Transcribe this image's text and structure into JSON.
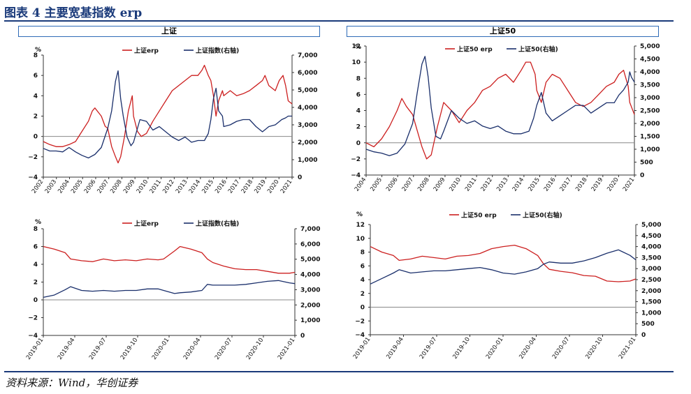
{
  "figure_title": "图表 4    主要宽基指数 erp",
  "source": "资料来源：Wind，华创证券",
  "panel_titles": {
    "left": "上证",
    "right": "上证50"
  },
  "colors": {
    "erp": "#cc1f1f",
    "index": "#1a2f6b",
    "accent": "#1a3a7a",
    "panel_border": "#2e6bb7"
  },
  "chart_data": [
    {
      "id": "a",
      "type": "line",
      "y_unit": "%",
      "left_ylim": [
        -4,
        8
      ],
      "right_ylim": [
        0,
        7000
      ],
      "left_ticks": [
        "8",
        "6",
        "4",
        "2",
        "0",
        "−2",
        "−4"
      ],
      "right_ticks": [
        "7,000",
        "6,000",
        "5,000",
        "4,000",
        "3,000",
        "2,000",
        "1,000",
        "0"
      ],
      "x_ticks": [
        "2002",
        "2003",
        "2004",
        "2005",
        "2006",
        "2007",
        "2008",
        "2009",
        "2010",
        "2011",
        "2012",
        "2013",
        "2014",
        "2015",
        "2016",
        "2017",
        "2018",
        "2019",
        "2020",
        "2021"
      ],
      "x_range": [
        2002,
        2021.3
      ],
      "series": [
        {
          "name": "上证erp",
          "axis": "left",
          "x": [
            2002,
            2002.5,
            2003,
            2003.5,
            2004,
            2004.5,
            2005,
            2005.5,
            2005.8,
            2006,
            2006.5,
            2006.8,
            2007,
            2007.3,
            2007.6,
            2007.8,
            2008,
            2008.3,
            2008.6,
            2008.9,
            2009,
            2009.3,
            2009.6,
            2010,
            2010.5,
            2011,
            2011.5,
            2012,
            2012.5,
            2013,
            2013.5,
            2014,
            2014.3,
            2014.5,
            2014.8,
            2015,
            2015.2,
            2015.4,
            2015.6,
            2015.9,
            2016,
            2016.5,
            2017,
            2017.5,
            2018,
            2018.5,
            2019,
            2019.2,
            2019.5,
            2020,
            2020.3,
            2020.6,
            2020.8,
            2021,
            2021.3
          ],
          "y": [
            -0.5,
            -0.8,
            -1.0,
            -1.0,
            -0.8,
            -0.5,
            0.5,
            1.5,
            2.5,
            2.8,
            2.0,
            1.0,
            0.8,
            -1.0,
            -2.0,
            -2.6,
            -2.0,
            0.0,
            2.5,
            4.0,
            2.0,
            0.5,
            0.0,
            0.3,
            1.5,
            2.5,
            3.5,
            4.5,
            5.0,
            5.5,
            6.0,
            6.0,
            6.5,
            7.0,
            6.0,
            5.5,
            4.0,
            2.0,
            3.5,
            4.5,
            4.0,
            4.5,
            4.0,
            4.2,
            4.5,
            5.0,
            5.5,
            6.0,
            5.0,
            4.5,
            5.5,
            6.0,
            5.0,
            3.5,
            3.2
          ]
        },
        {
          "name": "上证指数(右轴)",
          "axis": "right",
          "x": [
            2002,
            2002.5,
            2003,
            2003.5,
            2004,
            2004.5,
            2005,
            2005.5,
            2006,
            2006.5,
            2007,
            2007.3,
            2007.6,
            2007.8,
            2008,
            2008.2,
            2008.5,
            2008.8,
            2009,
            2009.5,
            2010,
            2010.5,
            2011,
            2011.5,
            2012,
            2012.5,
            2013,
            2013.5,
            2014,
            2014.5,
            2014.8,
            2015,
            2015.2,
            2015.4,
            2015.6,
            2015.9,
            2016,
            2016.5,
            2017,
            2017.5,
            2018,
            2018.5,
            2019,
            2019.5,
            2020,
            2020.5,
            2020.8,
            2021,
            2021.3
          ],
          "y": [
            1650,
            1500,
            1500,
            1450,
            1700,
            1450,
            1250,
            1100,
            1300,
            1700,
            2800,
            3800,
            5500,
            6100,
            4500,
            3500,
            2300,
            1800,
            2000,
            3300,
            3200,
            2700,
            2900,
            2600,
            2300,
            2100,
            2300,
            2000,
            2100,
            2100,
            2500,
            3300,
            4500,
            5100,
            3800,
            3500,
            2900,
            3000,
            3200,
            3300,
            3300,
            2900,
            2600,
            2900,
            3000,
            3300,
            3400,
            3500,
            3500
          ]
        }
      ]
    },
    {
      "id": "b",
      "type": "line",
      "y_unit": "%",
      "left_ylim": [
        -4,
        12
      ],
      "right_ylim": [
        0,
        5000
      ],
      "left_ticks": [
        "12",
        "10",
        "8",
        "6",
        "4",
        "2",
        "0",
        "−2",
        "−4"
      ],
      "right_ticks": [
        "5,000",
        "4,500",
        "4,000",
        "3,500",
        "3,000",
        "2,500",
        "2,000",
        "1,500",
        "1,000",
        "500",
        "0"
      ],
      "x_ticks": [
        "2004",
        "2005",
        "2006",
        "2007",
        "2008",
        "2009",
        "2010",
        "2011",
        "2012",
        "2013",
        "2014",
        "2015",
        "2016",
        "2017",
        "2018",
        "2019",
        "2020",
        "2021"
      ],
      "x_range": [
        2004,
        2021.3
      ],
      "series": [
        {
          "name": "上证50 erp",
          "axis": "left",
          "x": [
            2004,
            2004.5,
            2005,
            2005.5,
            2006,
            2006.3,
            2006.6,
            2007,
            2007.3,
            2007.6,
            2007.9,
            2008.2,
            2008.6,
            2009,
            2009.5,
            2010,
            2010.5,
            2011,
            2011.5,
            2012,
            2012.5,
            2013,
            2013.5,
            2014,
            2014.3,
            2014.6,
            2014.9,
            2015,
            2015.3,
            2015.6,
            2016,
            2016.5,
            2017,
            2017.5,
            2018,
            2018.5,
            2019,
            2019.5,
            2020,
            2020.3,
            2020.6,
            2020.9,
            2021,
            2021.3
          ],
          "y": [
            0.0,
            -0.5,
            0.5,
            2.0,
            4.0,
            5.5,
            4.5,
            3.5,
            1.5,
            -0.5,
            -2.0,
            -1.5,
            2.0,
            5.0,
            4.0,
            2.5,
            4.0,
            5.0,
            6.5,
            7.0,
            8.0,
            8.5,
            7.5,
            9.0,
            10.0,
            10.0,
            8.5,
            6.5,
            5.0,
            7.5,
            8.5,
            8.0,
            6.5,
            5.0,
            4.5,
            5.0,
            6.0,
            7.0,
            7.5,
            8.5,
            9.0,
            7.0,
            5.0,
            3.5
          ]
        },
        {
          "name": "上证50(右轴)",
          "axis": "right",
          "x": [
            2004,
            2004.5,
            2005,
            2005.5,
            2006,
            2006.5,
            2007,
            2007.3,
            2007.6,
            2007.8,
            2008,
            2008.2,
            2008.5,
            2008.8,
            2009,
            2009.5,
            2010,
            2010.5,
            2011,
            2011.5,
            2012,
            2012.5,
            2013,
            2013.5,
            2014,
            2014.5,
            2014.8,
            2015,
            2015.3,
            2015.6,
            2016,
            2016.5,
            2017,
            2017.5,
            2018,
            2018.5,
            2019,
            2019.5,
            2020,
            2020.3,
            2020.6,
            2020.9,
            2021,
            2021.1,
            2021.3
          ],
          "y": [
            1000,
            900,
            850,
            750,
            850,
            1200,
            2000,
            3200,
            4300,
            4600,
            3800,
            2600,
            1500,
            1400,
            1700,
            2500,
            2200,
            2000,
            2100,
            1900,
            1800,
            1900,
            1700,
            1600,
            1600,
            1700,
            2200,
            2700,
            3200,
            2400,
            2100,
            2300,
            2500,
            2700,
            2700,
            2400,
            2600,
            2800,
            2800,
            3100,
            3300,
            3600,
            4000,
            3800,
            3600
          ]
        }
      ]
    },
    {
      "id": "c",
      "type": "line",
      "y_unit": "%",
      "left_ylim": [
        -4,
        8
      ],
      "right_ylim": [
        0,
        7000
      ],
      "left_ticks": [
        "8",
        "6",
        "4",
        "2",
        "0",
        "−2",
        "−4"
      ],
      "right_ticks": [
        "7,000",
        "6,000",
        "5,000",
        "4,000",
        "3,000",
        "2,000",
        "1,000",
        "0"
      ],
      "x_ticks": [
        "2019-01",
        "2019-04",
        "2019-07",
        "2019-10",
        "2020-01",
        "2020-04",
        "2020-07",
        "2020-10",
        "2021-01"
      ],
      "x_range": [
        2019.0,
        2021.3
      ],
      "series": [
        {
          "name": "上证erp",
          "axis": "left",
          "x": [
            2019.0,
            2019.1,
            2019.2,
            2019.25,
            2019.35,
            2019.45,
            2019.55,
            2019.65,
            2019.75,
            2019.85,
            2019.95,
            2020.05,
            2020.1,
            2020.2,
            2020.25,
            2020.35,
            2020.45,
            2020.5,
            2020.55,
            2020.65,
            2020.75,
            2020.85,
            2020.95,
            2021.05,
            2021.15,
            2021.25,
            2021.3
          ],
          "y": [
            6.0,
            5.7,
            5.3,
            4.6,
            4.4,
            4.3,
            4.6,
            4.4,
            4.5,
            4.4,
            4.6,
            4.5,
            4.6,
            5.5,
            6.0,
            5.7,
            5.3,
            4.6,
            4.2,
            3.8,
            3.5,
            3.4,
            3.4,
            3.2,
            3.0,
            3.0,
            3.1
          ]
        },
        {
          "name": "上证指数(右轴)",
          "axis": "right",
          "x": [
            2019.0,
            2019.1,
            2019.2,
            2019.25,
            2019.35,
            2019.45,
            2019.55,
            2019.65,
            2019.75,
            2019.85,
            2019.95,
            2020.05,
            2020.1,
            2020.2,
            2020.25,
            2020.35,
            2020.45,
            2020.5,
            2020.55,
            2020.65,
            2020.75,
            2020.85,
            2020.95,
            2021.05,
            2021.15,
            2021.25,
            2021.3
          ],
          "y": [
            2500,
            2650,
            3000,
            3200,
            2950,
            2900,
            2950,
            2900,
            2950,
            2950,
            3050,
            3050,
            2950,
            2750,
            2800,
            2850,
            2950,
            3350,
            3300,
            3300,
            3300,
            3350,
            3450,
            3550,
            3600,
            3450,
            3400
          ]
        }
      ]
    },
    {
      "id": "d",
      "type": "line",
      "y_unit": "%",
      "left_ylim": [
        -4,
        12
      ],
      "right_ylim": [
        0,
        5000
      ],
      "left_ticks": [
        "12",
        "10",
        "8",
        "6",
        "4",
        "2",
        "0",
        "−2",
        "−4"
      ],
      "right_ticks": [
        "5,000",
        "4,500",
        "4,000",
        "3,500",
        "3,000",
        "2,500",
        "2,000",
        "1,500",
        "1,000",
        "500",
        "0"
      ],
      "x_ticks": [
        "2019-01",
        "2019-04",
        "2019-07",
        "2019-10",
        "2020-01",
        "2020-04",
        "2020-07",
        "2020-10",
        "2021-01"
      ],
      "x_range": [
        2019.0,
        2021.3
      ],
      "series": [
        {
          "name": "上证50 erp",
          "axis": "left",
          "x": [
            2019.0,
            2019.1,
            2019.2,
            2019.25,
            2019.35,
            2019.45,
            2019.55,
            2019.65,
            2019.75,
            2019.85,
            2019.95,
            2020.05,
            2020.15,
            2020.25,
            2020.35,
            2020.45,
            2020.5,
            2020.55,
            2020.65,
            2020.75,
            2020.85,
            2020.95,
            2021.05,
            2021.15,
            2021.25,
            2021.3
          ],
          "y": [
            8.8,
            8.0,
            7.5,
            6.8,
            7.0,
            7.4,
            7.2,
            7.0,
            7.4,
            7.5,
            7.8,
            8.5,
            8.8,
            9.0,
            8.5,
            7.5,
            6.3,
            5.5,
            5.2,
            5.0,
            4.6,
            4.5,
            3.8,
            3.7,
            3.8,
            4.1
          ]
        },
        {
          "name": "上证50(右轴)",
          "axis": "right",
          "x": [
            2019.0,
            2019.1,
            2019.2,
            2019.25,
            2019.35,
            2019.45,
            2019.55,
            2019.65,
            2019.75,
            2019.85,
            2019.95,
            2020.05,
            2020.15,
            2020.25,
            2020.35,
            2020.45,
            2020.5,
            2020.55,
            2020.65,
            2020.75,
            2020.85,
            2020.95,
            2021.05,
            2021.15,
            2021.25,
            2021.3
          ],
          "y": [
            2300,
            2550,
            2800,
            2950,
            2800,
            2850,
            2900,
            2900,
            2950,
            3000,
            3050,
            2950,
            2800,
            2750,
            2850,
            3000,
            3200,
            3300,
            3250,
            3250,
            3350,
            3500,
            3700,
            3850,
            3600,
            3400
          ]
        }
      ]
    }
  ]
}
